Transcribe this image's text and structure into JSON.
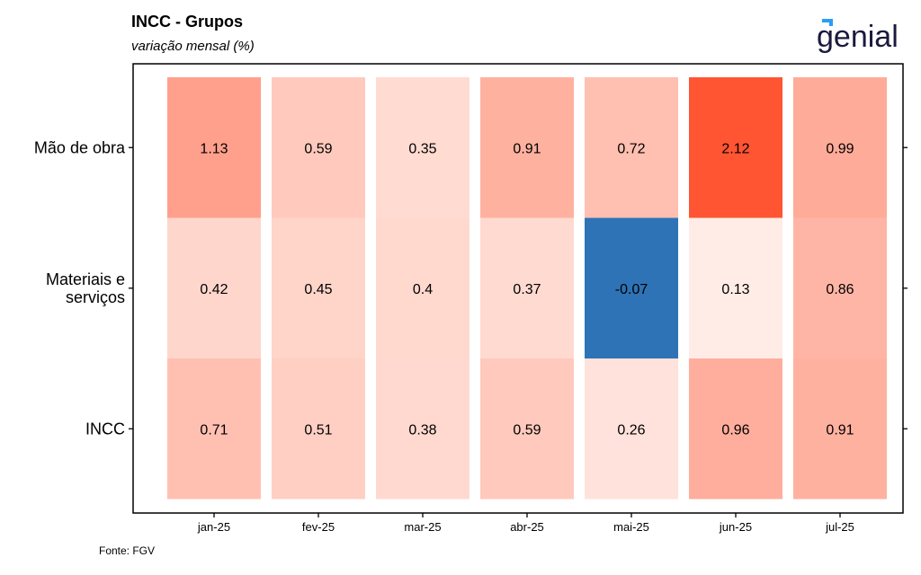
{
  "header": {
    "title": "INCC - Grupos",
    "subtitle": "variação mensal (%)"
  },
  "logo": {
    "text": "genial",
    "text_color": "#1a1a3e",
    "accent_color": "#2a9df4"
  },
  "footer": {
    "source": "Fonte: FGV"
  },
  "chart_data": {
    "type": "heatmap",
    "categories": [
      "jan-25",
      "fev-25",
      "mar-25",
      "abr-25",
      "mai-25",
      "jun-25",
      "jul-25"
    ],
    "rows": [
      {
        "label": [
          "Mão de obra"
        ],
        "values": [
          1.13,
          0.59,
          0.35,
          0.91,
          0.72,
          2.12,
          0.99
        ]
      },
      {
        "label": [
          "Materiais e",
          "serviços"
        ],
        "values": [
          0.42,
          0.45,
          0.4,
          0.37,
          -0.07,
          0.13,
          0.86
        ]
      },
      {
        "label": [
          "INCC"
        ],
        "values": [
          0.71,
          0.51,
          0.38,
          0.59,
          0.26,
          0.96,
          0.91
        ]
      }
    ],
    "value_labels": [
      [
        "1.13",
        "0.59",
        "0.35",
        "0.91",
        "0.72",
        "2.12",
        "0.99"
      ],
      [
        "0.42",
        "0.45",
        "0.4",
        "0.37",
        "-0.07",
        "0.13",
        "0.86"
      ],
      [
        "0.71",
        "0.51",
        "0.38",
        "0.59",
        "0.26",
        "0.96",
        "0.91"
      ]
    ],
    "color_scale": {
      "negative": "#2e73b6",
      "zero": "#fff6f2",
      "max": "#ff5533",
      "max_value": 2.12
    }
  }
}
